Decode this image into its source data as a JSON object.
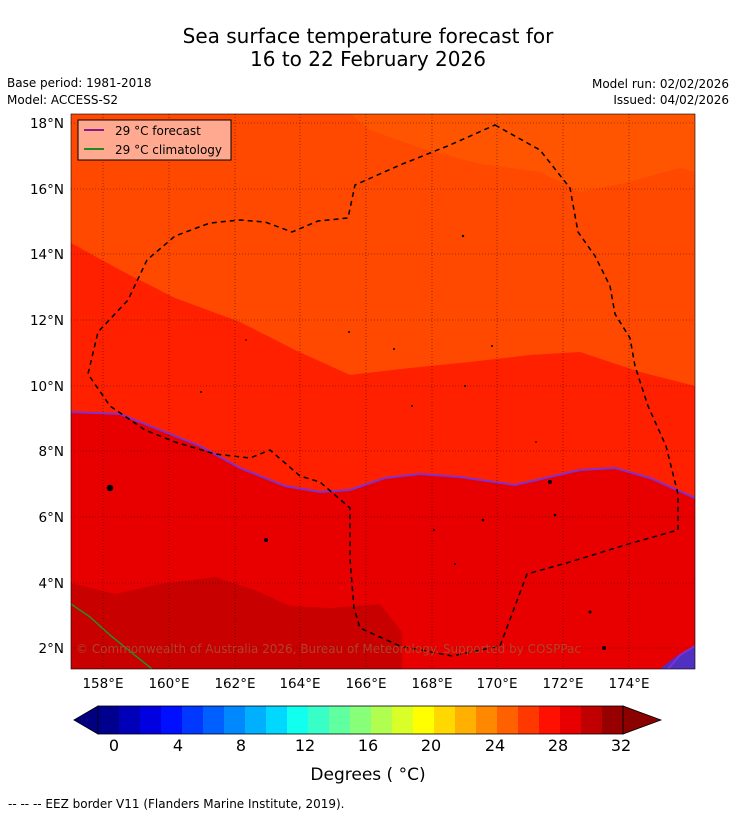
{
  "title_line1": "Sea surface temperature forecast for",
  "title_line2": "16 to 22 February 2026",
  "base_period": "Base period: 1981-2018",
  "model": "Model: ACCESS-S2",
  "model_run": "Model run: 02/02/2026",
  "issued": "Issued: 04/02/2026",
  "legend": {
    "forecast_label": "29 °C  forecast",
    "climatology_label": "29 °C  climatology",
    "forecast_color": "#8b1a8b",
    "climatology_color": "#1f8a1f"
  },
  "copyright": "© Commonwealth of Australia 2026, Bureau of Meteorology. Supported by COSPPac",
  "lat_labels": [
    "18°N",
    "16°N",
    "14°N",
    "12°N",
    "10°N",
    "8°N",
    "6°N",
    "4°N",
    "2°N"
  ],
  "lon_labels": [
    "158°E",
    "160°E",
    "162°E",
    "164°E",
    "166°E",
    "168°E",
    "170°E",
    "172°E",
    "174°E"
  ],
  "colorbar": {
    "tick_labels": [
      "0",
      "4",
      "8",
      "12",
      "16",
      "20",
      "24",
      "28",
      "32"
    ],
    "label": "Degrees ( °C)",
    "colors": [
      "#00008f",
      "#0000b8",
      "#0000e0",
      "#0010ff",
      "#0038ff",
      "#0060ff",
      "#0088ff",
      "#00b0ff",
      "#00d8ff",
      "#10ffef",
      "#38ffc8",
      "#60ffa0",
      "#88ff78",
      "#b0ff50",
      "#d8ff28",
      "#ffff00",
      "#ffd800",
      "#ffb000",
      "#ff8800",
      "#ff6000",
      "#ff3800",
      "#ff1000",
      "#e80000",
      "#c00000",
      "#980000"
    ],
    "under_color": "#000080",
    "over_color": "#8b0000"
  },
  "footnote": "--  --  -- EEZ border V11 (Flanders Marine Institute, 2019)."
}
